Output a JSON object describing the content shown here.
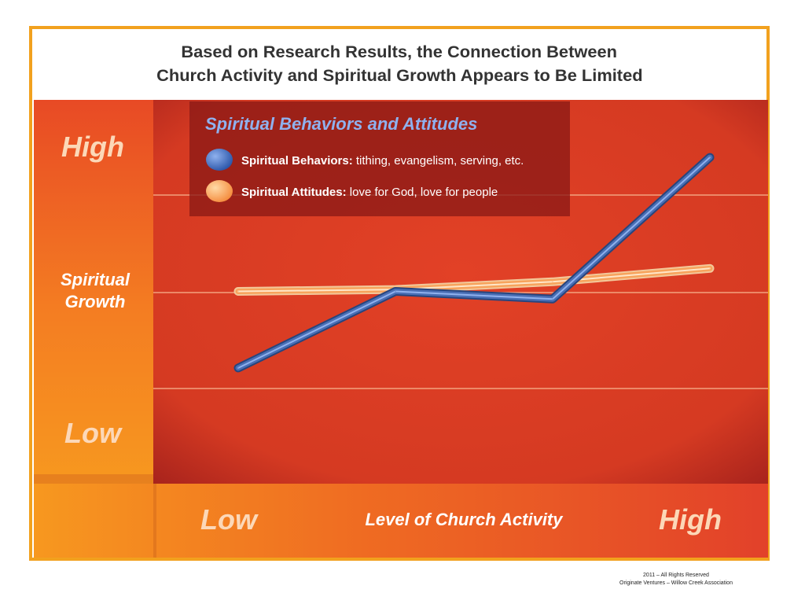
{
  "chart_data": {
    "type": "line",
    "title": [
      "Based on Research Results, the Connection Between",
      "Church Activity and Spiritual Growth Appears to Be Limited"
    ],
    "legend_title": "Spiritual Behaviors and Attitudes",
    "x": [
      1,
      2,
      3,
      4
    ],
    "xlim": [
      1,
      4
    ],
    "ylim": [
      0,
      10
    ],
    "xlabel": "Level of Church Activity",
    "x_low_label": "Low",
    "x_high_label": "High",
    "ylabel": [
      "Spiritual",
      "Growth"
    ],
    "y_low_label": "Low",
    "y_high_label": "High",
    "series": [
      {
        "name": "Spiritual Attitudes",
        "description": "love for God, love for people",
        "color": "#f7a35c",
        "values": [
          5.0,
          5.05,
          5.25,
          5.6
        ]
      },
      {
        "name": "Spiritual Behaviors",
        "description": "tithing, evangelism, serving, etc.",
        "color": "#4a6fb5",
        "values": [
          3.0,
          5.0,
          4.8,
          8.5
        ]
      }
    ],
    "colors": {
      "accent": "#f2a11e",
      "plot": "#d63c23",
      "side": "#f58a1f"
    }
  },
  "footer": {
    "line1": "2011 – All Rights Reserved",
    "line2": "Originate Ventures – Willow Creek Association"
  }
}
